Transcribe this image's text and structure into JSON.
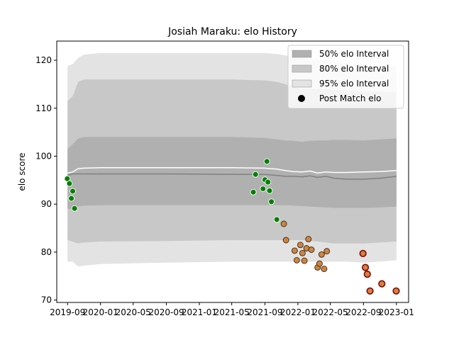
{
  "chart_data": {
    "type": "area",
    "title": "Josiah Maraku: elo History",
    "xlabel": "",
    "ylabel": "elo score",
    "ylim": [
      69.5,
      124
    ],
    "xlim": [
      "2019-07-23",
      "2023-02-15"
    ],
    "y_ticks": [
      70,
      80,
      90,
      100,
      110,
      120
    ],
    "x_ticks": [
      {
        "date": "2019-09-01",
        "label": "2019-09"
      },
      {
        "date": "2020-01-01",
        "label": "2020-01"
      },
      {
        "date": "2020-05-01",
        "label": "2020-05"
      },
      {
        "date": "2020-09-01",
        "label": "2020-09"
      },
      {
        "date": "2021-01-01",
        "label": "2021-01"
      },
      {
        "date": "2021-05-01",
        "label": "2021-05"
      },
      {
        "date": "2021-09-01",
        "label": "2021-09"
      },
      {
        "date": "2022-01-01",
        "label": "2022-01"
      },
      {
        "date": "2022-05-01",
        "label": "2022-05"
      },
      {
        "date": "2022-09-01",
        "label": "2022-09"
      },
      {
        "date": "2023-01-01",
        "label": "2023-01"
      }
    ],
    "grid": false,
    "legend_position": "top-right",
    "legend": [
      {
        "label": "50% elo Interval",
        "kind": "patch",
        "color": "#b0b0b0"
      },
      {
        "label": "80% elo Interval",
        "kind": "patch",
        "color": "#c8c8c8"
      },
      {
        "label": "95% elo Interval",
        "kind": "patch",
        "color": "#e3e3e3"
      },
      {
        "label": "Post Match elo",
        "kind": "marker",
        "color": "#000000"
      }
    ],
    "colors": {
      "band95": "#e3e3e3",
      "band80": "#c8c8c8",
      "band50": "#b0b0b0",
      "median_line": "#808080",
      "mean_line": "#ffffff",
      "point_green": "#008000",
      "point_orange": "#cd853f",
      "point_darkred": "#8b0000"
    },
    "bands": {
      "x": [
        "2019-09-01",
        "2019-09-20",
        "2019-10-10",
        "2019-11-01",
        "2020-01-01",
        "2020-09-01",
        "2021-05-01",
        "2021-09-01",
        "2021-10-15",
        "2021-11-15",
        "2021-12-15",
        "2022-01-15",
        "2022-02-15",
        "2022-03-15",
        "2022-04-15",
        "2022-05-15",
        "2022-07-01",
        "2022-09-01",
        "2022-11-01",
        "2023-01-01"
      ],
      "p95_low": [
        78.0,
        78.0,
        77.0,
        77.2,
        77.5,
        77.8,
        78.0,
        78.0,
        78.0,
        78.0,
        78.0,
        78.0,
        78.0,
        78.0,
        78.0,
        78.0,
        78.0,
        77.8,
        78.0,
        78.3
      ],
      "p95_high": [
        118.8,
        119.2,
        120.5,
        121.2,
        121.5,
        121.5,
        121.5,
        121.5,
        121.3,
        121.0,
        120.8,
        120.5,
        120.3,
        120.2,
        120.0,
        119.5,
        119.4,
        119.2,
        119.0,
        118.8
      ],
      "p80_low": [
        82.5,
        82.2,
        81.8,
        82.0,
        82.2,
        82.3,
        82.5,
        82.5,
        82.5,
        82.5,
        82.5,
        82.5,
        82.4,
        82.2,
        82.0,
        81.8,
        81.8,
        81.8,
        82.0,
        82.2
      ],
      "p80_high": [
        111.5,
        112.5,
        115.5,
        116.0,
        116.0,
        116.0,
        116.0,
        115.8,
        115.5,
        115.0,
        114.5,
        114.0,
        114.0,
        114.0,
        114.0,
        113.8,
        113.7,
        113.5,
        113.5,
        113.3
      ],
      "p50_low": [
        89.0,
        89.0,
        89.5,
        89.7,
        89.8,
        89.8,
        89.8,
        89.8,
        89.8,
        89.8,
        89.7,
        89.6,
        89.5,
        89.4,
        89.3,
        89.2,
        89.2,
        89.2,
        89.3,
        89.5
      ],
      "p50_high": [
        101.5,
        102.5,
        103.7,
        104.0,
        104.0,
        104.0,
        104.0,
        103.8,
        103.5,
        103.3,
        103.2,
        103.0,
        103.2,
        103.3,
        103.3,
        103.4,
        103.4,
        103.3,
        103.5,
        103.7
      ],
      "median": [
        96.0,
        96.3,
        96.3,
        96.3,
        96.3,
        96.3,
        96.2,
        96.2,
        96.0,
        95.8,
        95.8,
        95.7,
        95.9,
        95.6,
        95.8,
        95.4,
        95.2,
        95.2,
        95.4,
        95.8
      ],
      "mean": [
        96.5,
        96.7,
        97.4,
        97.5,
        97.6,
        97.6,
        97.6,
        97.5,
        97.3,
        97.0,
        96.8,
        96.7,
        96.9,
        96.5,
        96.7,
        96.6,
        96.6,
        96.7,
        96.8,
        97.0
      ]
    },
    "points": [
      {
        "x": "2019-08-31",
        "y": 95.3,
        "color": "green"
      },
      {
        "x": "2019-09-08",
        "y": 94.3,
        "color": "green"
      },
      {
        "x": "2019-09-15",
        "y": 91.2,
        "color": "green"
      },
      {
        "x": "2019-09-20",
        "y": 92.7,
        "color": "green"
      },
      {
        "x": "2019-09-27",
        "y": 89.1,
        "color": "green"
      },
      {
        "x": "2021-07-20",
        "y": 92.5,
        "color": "green"
      },
      {
        "x": "2021-07-28",
        "y": 96.2,
        "color": "green"
      },
      {
        "x": "2021-08-25",
        "y": 93.2,
        "color": "green"
      },
      {
        "x": "2021-09-01",
        "y": 95.1,
        "color": "green"
      },
      {
        "x": "2021-09-08",
        "y": 98.9,
        "color": "green"
      },
      {
        "x": "2021-09-12",
        "y": 94.6,
        "color": "green"
      },
      {
        "x": "2021-09-18",
        "y": 92.8,
        "color": "green"
      },
      {
        "x": "2021-09-25",
        "y": 90.5,
        "color": "green"
      },
      {
        "x": "2021-10-15",
        "y": 86.8,
        "color": "green"
      },
      {
        "x": "2021-11-10",
        "y": 85.9,
        "color": "orange"
      },
      {
        "x": "2021-11-18",
        "y": 82.5,
        "color": "orange"
      },
      {
        "x": "2021-12-20",
        "y": 80.3,
        "color": "orange"
      },
      {
        "x": "2021-12-28",
        "y": 78.3,
        "color": "orange"
      },
      {
        "x": "2022-01-10",
        "y": 81.5,
        "color": "orange"
      },
      {
        "x": "2022-01-18",
        "y": 79.8,
        "color": "orange"
      },
      {
        "x": "2022-01-25",
        "y": 78.2,
        "color": "orange"
      },
      {
        "x": "2022-02-02",
        "y": 80.8,
        "color": "orange"
      },
      {
        "x": "2022-02-09",
        "y": 82.7,
        "color": "orange"
      },
      {
        "x": "2022-02-20",
        "y": 80.5,
        "color": "orange"
      },
      {
        "x": "2022-03-15",
        "y": 76.8,
        "color": "orange"
      },
      {
        "x": "2022-03-22",
        "y": 77.6,
        "color": "orange"
      },
      {
        "x": "2022-03-30",
        "y": 79.5,
        "color": "orange"
      },
      {
        "x": "2022-04-08",
        "y": 76.5,
        "color": "orange"
      },
      {
        "x": "2022-04-18",
        "y": 80.2,
        "color": "orange"
      },
      {
        "x": "2022-08-30",
        "y": 79.7,
        "color": "darkred"
      },
      {
        "x": "2022-09-08",
        "y": 76.8,
        "color": "darkred"
      },
      {
        "x": "2022-09-15",
        "y": 75.4,
        "color": "darkred"
      },
      {
        "x": "2022-09-25",
        "y": 71.9,
        "color": "darkred"
      },
      {
        "x": "2022-11-08",
        "y": 73.4,
        "color": "darkred"
      },
      {
        "x": "2022-12-31",
        "y": 71.9,
        "color": "darkred"
      }
    ]
  }
}
